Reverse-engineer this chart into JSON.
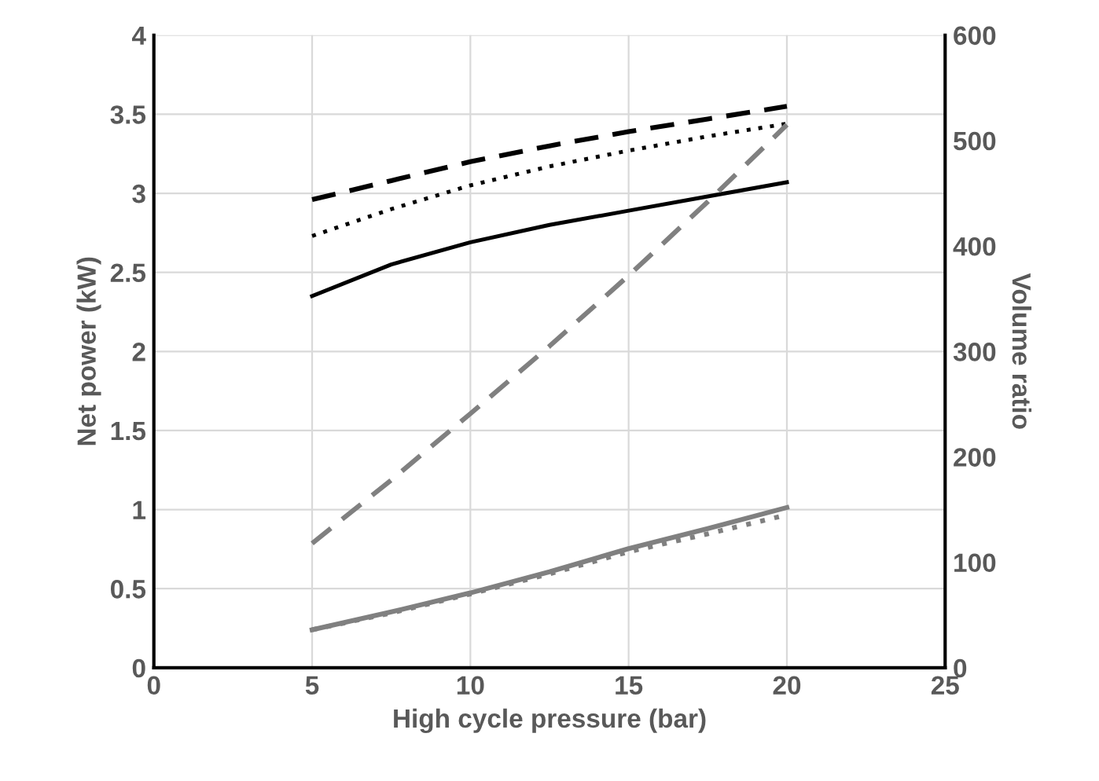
{
  "chart_data": {
    "type": "line",
    "xlabel": "High cycle pressure (bar)",
    "ylabel": "Net power (kW)",
    "y2label": "Volume ratio",
    "x": [
      5,
      7.5,
      10,
      12.5,
      15,
      17.5,
      20
    ],
    "series": [
      {
        "color": "#000000",
        "line_style": "dashed",
        "values": [
          2.96,
          3.08,
          3.2,
          3.3,
          3.39,
          3.47,
          3.55
        ]
      },
      {
        "color": "#000000",
        "line_style": "dotted",
        "values": [
          2.73,
          2.9,
          3.05,
          3.17,
          3.27,
          3.36,
          3.44
        ]
      },
      {
        "color": "#000000",
        "line_style": "solid",
        "values": [
          2.35,
          2.55,
          2.69,
          2.8,
          2.89,
          2.98,
          3.07
        ]
      },
      {
        "color": "#808080",
        "line_style": "dashed",
        "axis": "y2",
        "values": [
          118,
          178,
          241,
          305,
          372,
          442,
          515
        ]
      },
      {
        "color": "#808080",
        "line_style": "dotted",
        "axis": "y2",
        "values": [
          36,
          52,
          70,
          89,
          110,
          127,
          145
        ]
      },
      {
        "color": "#808080",
        "line_style": "solid",
        "axis": "y2",
        "values": [
          36,
          53,
          71,
          91,
          113,
          132,
          152
        ]
      }
    ],
    "xlim": [
      0,
      25
    ],
    "xticks": [
      0,
      5,
      10,
      15,
      20,
      25
    ],
    "ylim": [
      0,
      4
    ],
    "yticks": [
      0,
      0.5,
      1,
      1.5,
      2,
      2.5,
      3,
      3.5,
      4
    ],
    "y2lim": [
      0,
      600
    ],
    "y2ticks": [
      0,
      100,
      200,
      300,
      400,
      500,
      600
    ],
    "grid": true,
    "marker": "none"
  }
}
